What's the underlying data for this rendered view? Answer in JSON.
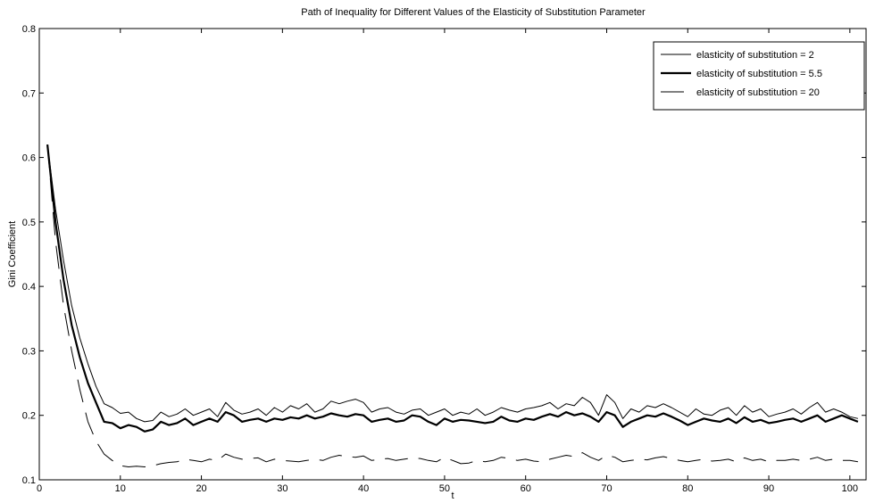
{
  "chart_data": {
    "type": "line",
    "title": "Path of Inequality for Different Values of the Elasticity of Substitution Parameter",
    "xlabel": "t",
    "ylabel": "Gini Coefficient",
    "xlim": [
      0,
      102
    ],
    "ylim": [
      0.1,
      0.8
    ],
    "xticks": [
      0,
      10,
      20,
      30,
      40,
      50,
      60,
      70,
      80,
      90,
      100
    ],
    "yticks": [
      0.1,
      0.2,
      0.3,
      0.4,
      0.5,
      0.6,
      0.7,
      0.8
    ],
    "grid": false,
    "legend_position": "top-right",
    "series": [
      {
        "name": "elasticity of substitution = 2",
        "style": "thin",
        "color": "#000000",
        "x": [
          1,
          2,
          3,
          4,
          5,
          6,
          7,
          8,
          9,
          10,
          11,
          12,
          13,
          14,
          15,
          16,
          17,
          18,
          19,
          20,
          21,
          22,
          23,
          24,
          25,
          26,
          27,
          28,
          29,
          30,
          31,
          32,
          33,
          34,
          35,
          36,
          37,
          38,
          39,
          40,
          41,
          42,
          43,
          44,
          45,
          46,
          47,
          48,
          49,
          50,
          51,
          52,
          53,
          54,
          55,
          56,
          57,
          58,
          59,
          60,
          61,
          62,
          63,
          64,
          65,
          66,
          67,
          68,
          69,
          70,
          71,
          72,
          73,
          74,
          75,
          76,
          77,
          78,
          79,
          80,
          81,
          82,
          83,
          84,
          85,
          86,
          87,
          88,
          89,
          90,
          91,
          92,
          93,
          94,
          95,
          96,
          97,
          98,
          99,
          100,
          101
        ],
        "values": [
          0.62,
          0.52,
          0.44,
          0.37,
          0.32,
          0.28,
          0.245,
          0.218,
          0.212,
          0.203,
          0.205,
          0.195,
          0.19,
          0.192,
          0.205,
          0.198,
          0.202,
          0.21,
          0.2,
          0.205,
          0.21,
          0.198,
          0.22,
          0.208,
          0.202,
          0.205,
          0.21,
          0.2,
          0.212,
          0.205,
          0.215,
          0.21,
          0.218,
          0.205,
          0.21,
          0.222,
          0.218,
          0.222,
          0.225,
          0.22,
          0.205,
          0.21,
          0.212,
          0.205,
          0.202,
          0.208,
          0.21,
          0.2,
          0.205,
          0.21,
          0.2,
          0.205,
          0.202,
          0.21,
          0.2,
          0.205,
          0.212,
          0.208,
          0.205,
          0.21,
          0.212,
          0.215,
          0.22,
          0.21,
          0.218,
          0.215,
          0.228,
          0.22,
          0.2,
          0.232,
          0.22,
          0.195,
          0.21,
          0.205,
          0.215,
          0.212,
          0.218,
          0.212,
          0.205,
          0.198,
          0.21,
          0.202,
          0.2,
          0.208,
          0.212,
          0.2,
          0.215,
          0.205,
          0.21,
          0.198,
          0.202,
          0.205,
          0.21,
          0.202,
          0.212,
          0.22,
          0.205,
          0.21,
          0.205,
          0.198,
          0.195
        ]
      },
      {
        "name": "elasticity of substitution = 5.5",
        "style": "thick",
        "color": "#000000",
        "x": [
          1,
          2,
          3,
          4,
          5,
          6,
          7,
          8,
          9,
          10,
          11,
          12,
          13,
          14,
          15,
          16,
          17,
          18,
          19,
          20,
          21,
          22,
          23,
          24,
          25,
          26,
          27,
          28,
          29,
          30,
          31,
          32,
          33,
          34,
          35,
          36,
          37,
          38,
          39,
          40,
          41,
          42,
          43,
          44,
          45,
          46,
          47,
          48,
          49,
          50,
          51,
          52,
          53,
          54,
          55,
          56,
          57,
          58,
          59,
          60,
          61,
          62,
          63,
          64,
          65,
          66,
          67,
          68,
          69,
          70,
          71,
          72,
          73,
          74,
          75,
          76,
          77,
          78,
          79,
          80,
          81,
          82,
          83,
          84,
          85,
          86,
          87,
          88,
          89,
          90,
          91,
          92,
          93,
          94,
          95,
          96,
          97,
          98,
          99,
          100,
          101
        ],
        "values": [
          0.62,
          0.5,
          0.41,
          0.34,
          0.29,
          0.25,
          0.22,
          0.19,
          0.188,
          0.18,
          0.185,
          0.182,
          0.175,
          0.178,
          0.19,
          0.185,
          0.188,
          0.195,
          0.185,
          0.19,
          0.195,
          0.19,
          0.205,
          0.2,
          0.19,
          0.193,
          0.195,
          0.19,
          0.195,
          0.193,
          0.197,
          0.195,
          0.2,
          0.195,
          0.198,
          0.203,
          0.2,
          0.198,
          0.202,
          0.2,
          0.19,
          0.193,
          0.195,
          0.19,
          0.192,
          0.2,
          0.198,
          0.19,
          0.185,
          0.195,
          0.19,
          0.193,
          0.192,
          0.19,
          0.188,
          0.19,
          0.198,
          0.192,
          0.19,
          0.195,
          0.193,
          0.198,
          0.202,
          0.198,
          0.205,
          0.2,
          0.203,
          0.198,
          0.19,
          0.205,
          0.2,
          0.182,
          0.19,
          0.195,
          0.2,
          0.198,
          0.203,
          0.198,
          0.192,
          0.185,
          0.19,
          0.195,
          0.192,
          0.19,
          0.195,
          0.188,
          0.197,
          0.19,
          0.193,
          0.188,
          0.19,
          0.193,
          0.195,
          0.19,
          0.195,
          0.2,
          0.19,
          0.195,
          0.2,
          0.195,
          0.19
        ]
      },
      {
        "name": "elasticity of substitution = 20",
        "style": "dashed",
        "color": "#000000",
        "x": [
          1,
          2,
          3,
          4,
          5,
          6,
          7,
          8,
          9,
          10,
          11,
          12,
          13,
          14,
          15,
          16,
          17,
          18,
          19,
          20,
          21,
          22,
          23,
          24,
          25,
          26,
          27,
          28,
          29,
          30,
          31,
          32,
          33,
          34,
          35,
          36,
          37,
          38,
          39,
          40,
          41,
          42,
          43,
          44,
          45,
          46,
          47,
          48,
          49,
          50,
          51,
          52,
          53,
          54,
          55,
          56,
          57,
          58,
          59,
          60,
          61,
          62,
          63,
          64,
          65,
          66,
          67,
          68,
          69,
          70,
          71,
          72,
          73,
          74,
          75,
          76,
          77,
          78,
          79,
          80,
          81,
          82,
          83,
          84,
          85,
          86,
          87,
          88,
          89,
          90,
          91,
          92,
          93,
          94,
          95,
          96,
          97,
          98,
          99,
          100,
          101
        ],
        "values": [
          0.62,
          0.47,
          0.37,
          0.3,
          0.24,
          0.19,
          0.16,
          0.14,
          0.13,
          0.122,
          0.12,
          0.121,
          0.12,
          0.122,
          0.125,
          0.127,
          0.128,
          0.132,
          0.13,
          0.128,
          0.132,
          0.13,
          0.14,
          0.135,
          0.132,
          0.133,
          0.134,
          0.128,
          0.132,
          0.13,
          0.129,
          0.128,
          0.13,
          0.132,
          0.13,
          0.135,
          0.138,
          0.136,
          0.135,
          0.137,
          0.13,
          0.132,
          0.133,
          0.13,
          0.132,
          0.134,
          0.133,
          0.13,
          0.128,
          0.135,
          0.13,
          0.125,
          0.126,
          0.13,
          0.128,
          0.13,
          0.135,
          0.133,
          0.13,
          0.132,
          0.129,
          0.128,
          0.132,
          0.135,
          0.138,
          0.136,
          0.142,
          0.135,
          0.13,
          0.138,
          0.135,
          0.128,
          0.13,
          0.132,
          0.131,
          0.134,
          0.136,
          0.133,
          0.13,
          0.128,
          0.13,
          0.132,
          0.129,
          0.13,
          0.132,
          0.128,
          0.134,
          0.13,
          0.132,
          0.128,
          0.13,
          0.13,
          0.132,
          0.13,
          0.132,
          0.135,
          0.13,
          0.132,
          0.13,
          0.13,
          0.128
        ]
      }
    ]
  }
}
